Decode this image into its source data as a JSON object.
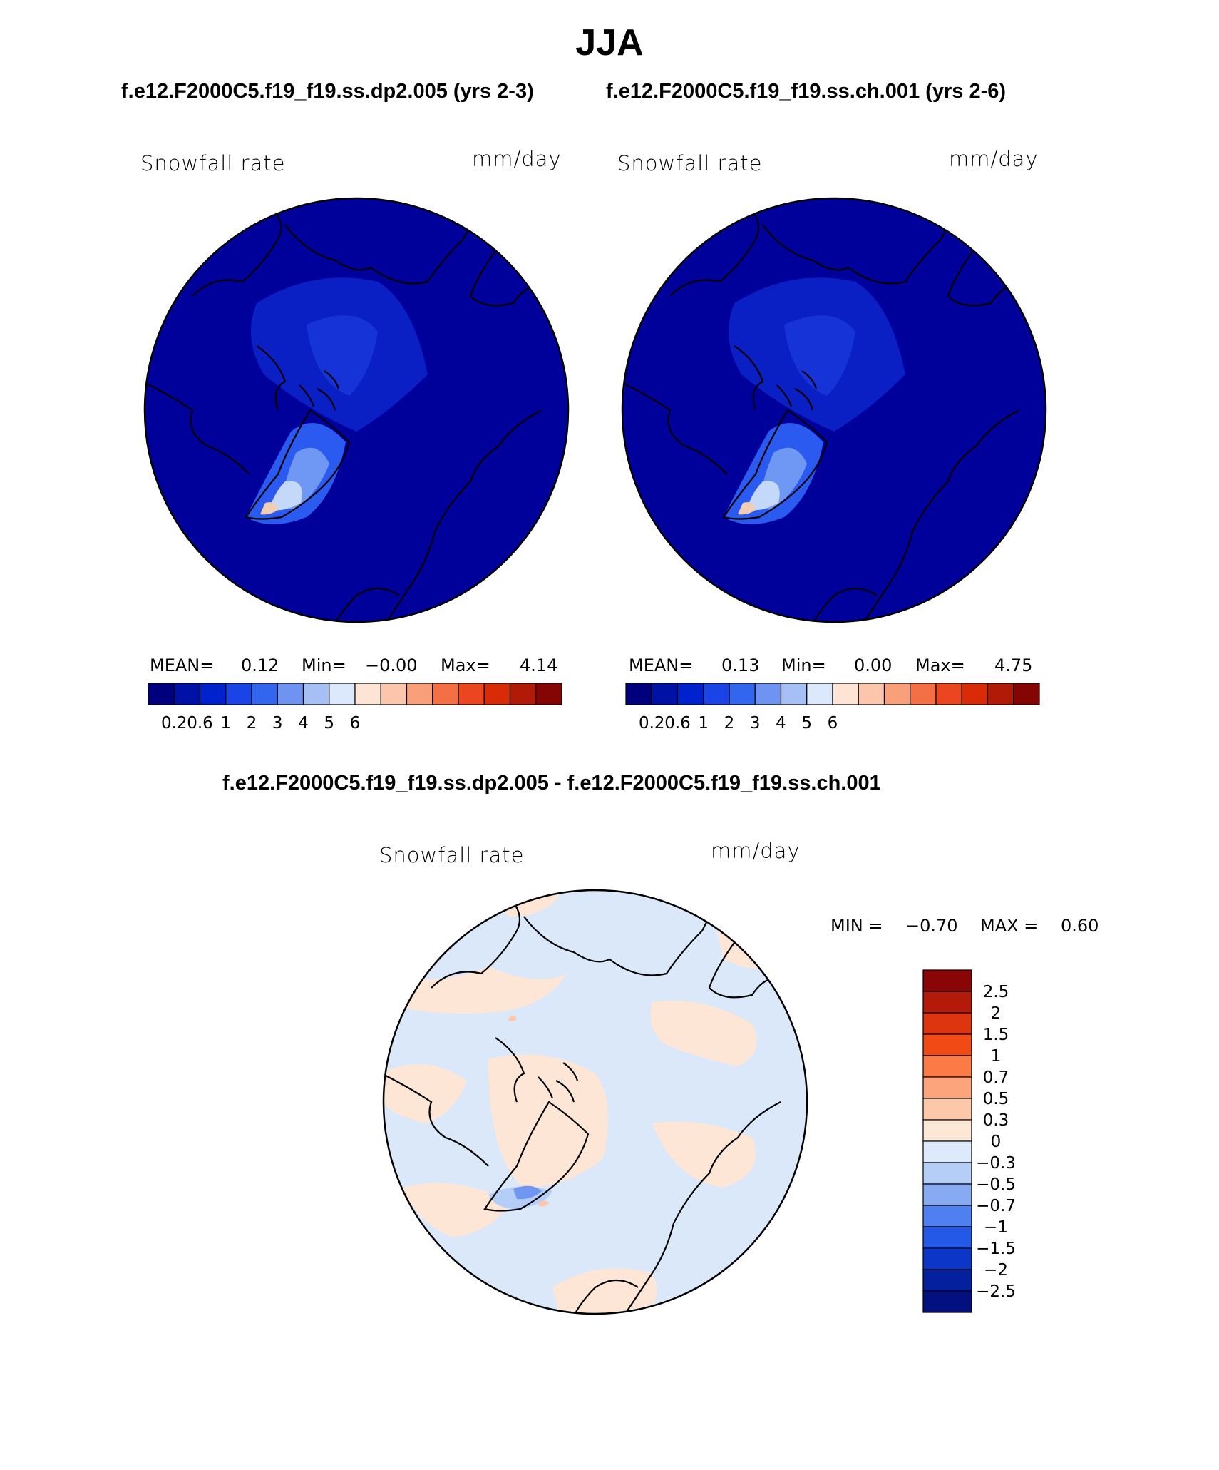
{
  "figure": {
    "title": "JJA",
    "case1_title": "f.e12.F2000C5.f19_f19.ss.dp2.005 (yrs 2-3)",
    "case2_title": "f.e12.F2000C5.f19_f19.ss.ch.001 (yrs 2-6)",
    "diff_title": "f.e12.F2000C5.f19_f19.ss.dp2.005 - f.e12.F2000C5.f19_f19.ss.ch.001"
  },
  "panels": [
    {
      "variable": "Snowfall rate",
      "units": "mm/day",
      "mean_label": "MEAN=",
      "mean": "0.12",
      "min_label": "Min=",
      "min": "−0.00",
      "max_label": "Max=",
      "max": "4.14"
    },
    {
      "variable": "Snowfall rate",
      "units": "mm/day",
      "mean_label": "MEAN=",
      "mean": "0.13",
      "min_label": "Min=",
      "min": "0.00",
      "max_label": "Max=",
      "max": "4.75"
    },
    {
      "variable": "Snowfall rate",
      "units": "mm/day",
      "min_label": "MIN =",
      "min": "−0.70",
      "max_label": "MAX =",
      "max": "0.60"
    }
  ],
  "chart_data": [
    {
      "type": "heatmap",
      "title": "f.e12.F2000C5.f19_f19.ss.dp2.005 (yrs 2-3)",
      "projection": "polar-stereographic (north)",
      "variable": "Snowfall rate",
      "units": "mm/day",
      "mean": 0.12,
      "min": -0.0,
      "max": 4.14,
      "colorbar": {
        "orientation": "horizontal",
        "tick_labels": [
          "0.2",
          "0.6",
          "1",
          "2",
          "3",
          "4",
          "5",
          "6"
        ],
        "colors": [
          "#00007f",
          "#0011a6",
          "#0022cc",
          "#1a44e6",
          "#3366ee",
          "#6e93f2",
          "#a6bff5",
          "#dce8fb",
          "#fde4d4",
          "#fcc6ac",
          "#f9a07a",
          "#f46f45",
          "#ec4620",
          "#d92b08",
          "#b01a06",
          "#850404"
        ]
      }
    },
    {
      "type": "heatmap",
      "title": "f.e12.F2000C5.f19_f19.ss.ch.001 (yrs 2-6)",
      "projection": "polar-stereographic (north)",
      "variable": "Snowfall rate",
      "units": "mm/day",
      "mean": 0.13,
      "min": 0.0,
      "max": 4.75,
      "colorbar": {
        "orientation": "horizontal",
        "tick_labels": [
          "0.2",
          "0.6",
          "1",
          "2",
          "3",
          "4",
          "5",
          "6"
        ],
        "colors": [
          "#00007f",
          "#0011a6",
          "#0022cc",
          "#1a44e6",
          "#3366ee",
          "#6e93f2",
          "#a6bff5",
          "#dce8fb",
          "#fde4d4",
          "#fcc6ac",
          "#f9a07a",
          "#f46f45",
          "#ec4620",
          "#d92b08",
          "#b01a06",
          "#850404"
        ]
      }
    },
    {
      "type": "heatmap",
      "title": "f.e12.F2000C5.f19_f19.ss.dp2.005 - f.e12.F2000C5.f19_f19.ss.ch.001",
      "projection": "polar-stereographic (north)",
      "variable": "Snowfall rate",
      "units": "mm/day",
      "min": -0.7,
      "max": 0.6,
      "colorbar": {
        "orientation": "vertical",
        "tick_labels": [
          "2.5",
          "2",
          "1.5",
          "1",
          "0.7",
          "0.5",
          "0.3",
          "0",
          "−0.3",
          "−0.5",
          "−0.7",
          "−1",
          "−1.5",
          "−2",
          "−2.5"
        ],
        "colors": [
          "#8a0505",
          "#b31a0a",
          "#dc3510",
          "#f24a15",
          "#fb7a45",
          "#fca57c",
          "#fdc8aa",
          "#fde8d8",
          "#dceafb",
          "#b5cef7",
          "#87aaf2",
          "#4f7ff0",
          "#2459e8",
          "#0c36c8",
          "#04209e",
          "#021080"
        ]
      }
    }
  ]
}
